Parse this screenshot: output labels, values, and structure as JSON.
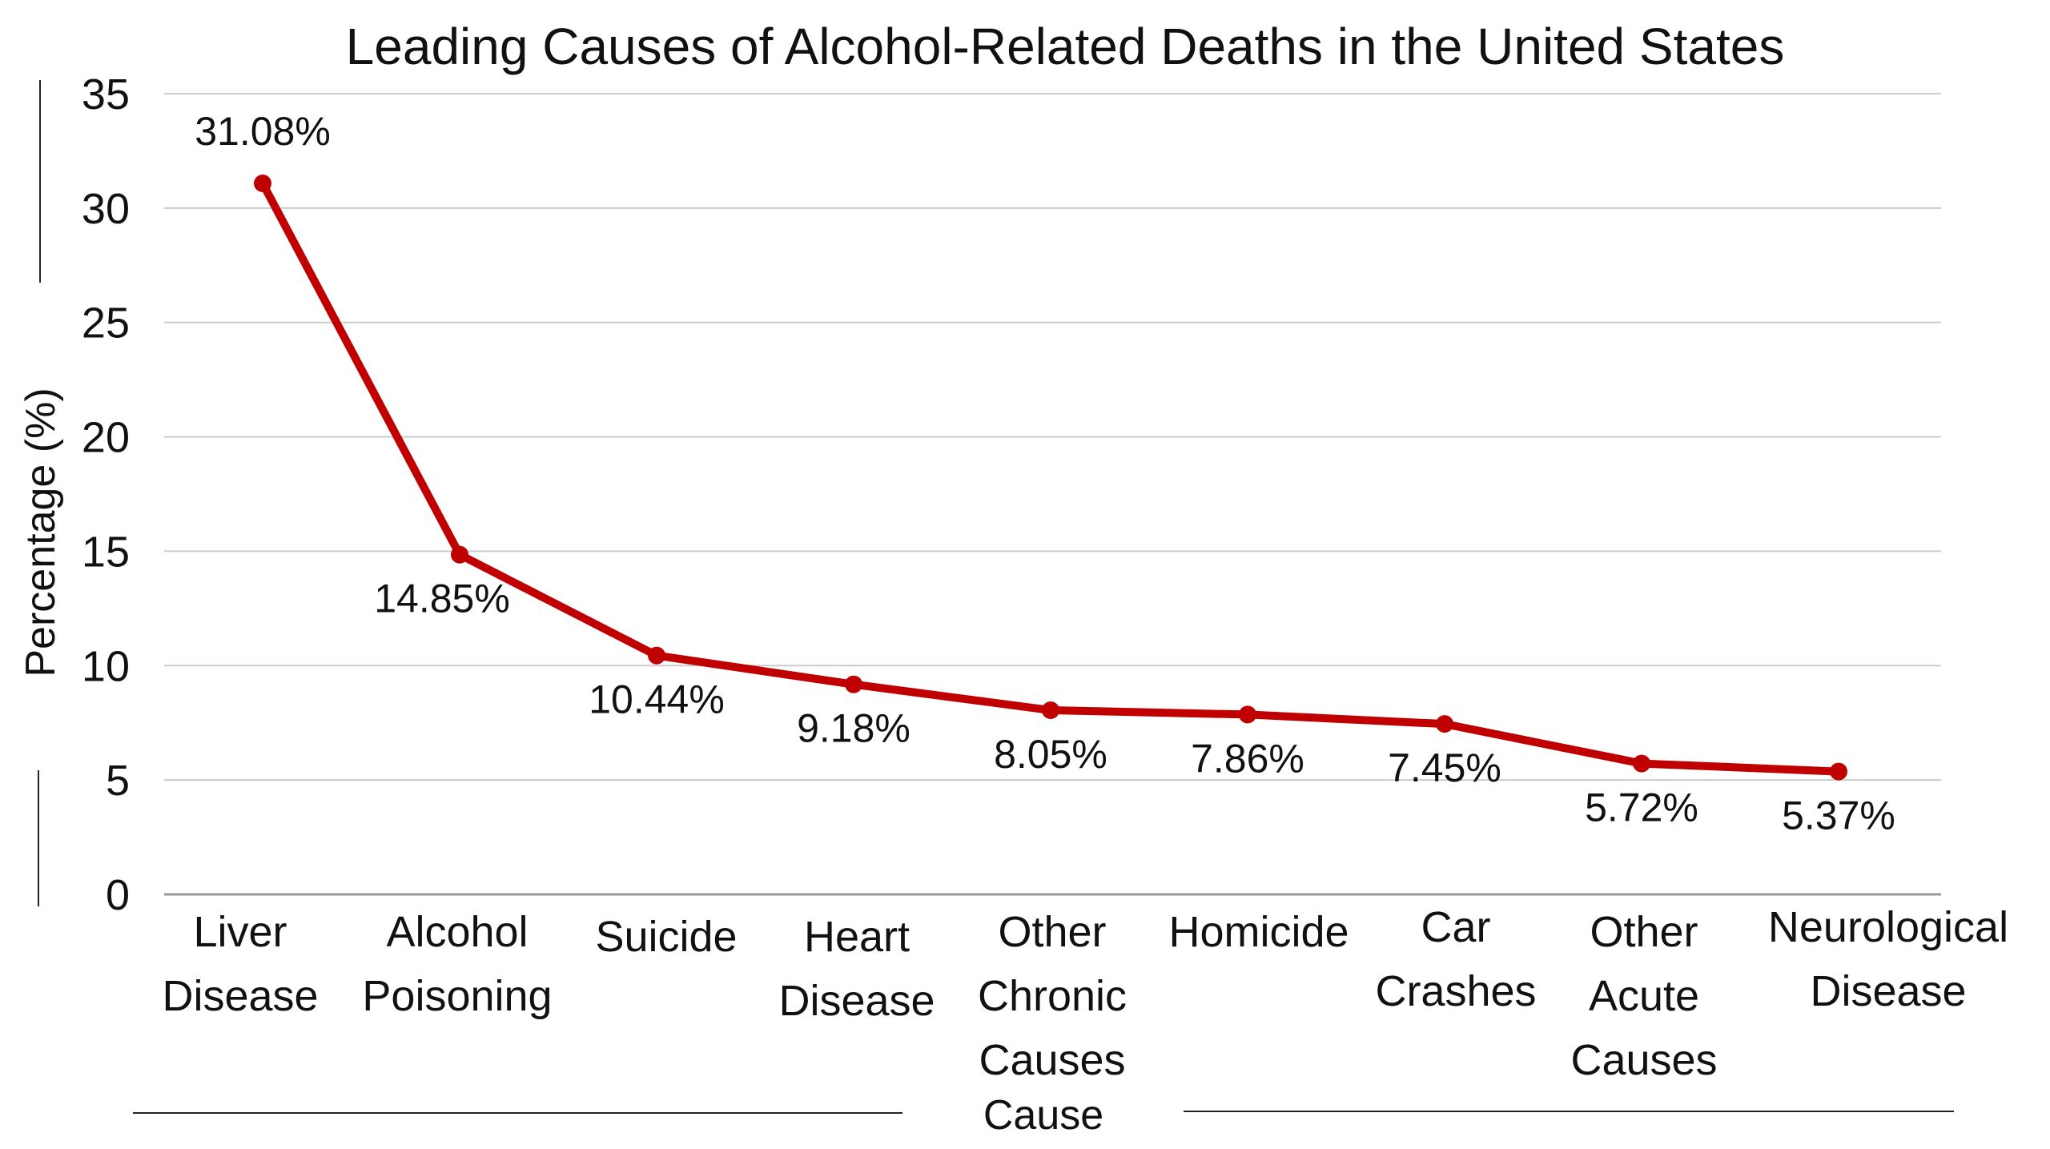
{
  "chart_data": {
    "type": "line",
    "title": "Leading Causes of Alcohol-Related Deaths in the United States",
    "xlabel": "Cause",
    "ylabel": "Percentage (%)",
    "ylim": [
      0,
      35
    ],
    "yticks": [
      0,
      5,
      10,
      15,
      20,
      25,
      30,
      35
    ],
    "grid": true,
    "line_color": "#C00000",
    "categories": [
      [
        "Liver",
        "Disease"
      ],
      [
        "Alcohol",
        "Poisoning"
      ],
      [
        "Suicide"
      ],
      [
        "Heart",
        "Disease"
      ],
      [
        "Other",
        "Chronic",
        "Causes"
      ],
      [
        "Homicide"
      ],
      [
        "Car",
        "Crashes"
      ],
      [
        "Other",
        "Acute",
        "Causes"
      ],
      [
        "Neurological",
        "Disease"
      ]
    ],
    "values": [
      31.08,
      14.85,
      10.44,
      9.18,
      8.05,
      7.86,
      7.45,
      5.72,
      5.37
    ],
    "data_labels": [
      "31.08%",
      "14.85%",
      "10.44%",
      "9.18%",
      "8.05%",
      "7.86%",
      "7.45%",
      "5.72%",
      "5.37%"
    ]
  }
}
